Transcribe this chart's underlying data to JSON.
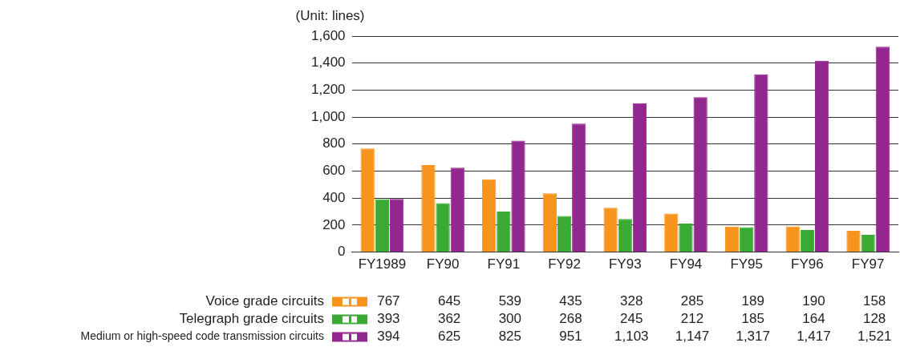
{
  "chart_data": {
    "type": "bar",
    "ylabel": "(Unit: lines)",
    "categories": [
      "FY1989",
      "FY90",
      "FY91",
      "FY92",
      "FY93",
      "FY94",
      "FY95",
      "FY96",
      "FY97"
    ],
    "series": [
      {
        "name": "Voice grade circuits",
        "color": "#f7941d",
        "values": [
          767,
          645,
          539,
          435,
          328,
          285,
          189,
          190,
          158
        ],
        "value_labels": [
          "767",
          "645",
          "539",
          "435",
          "328",
          "285",
          "189",
          "190",
          "158"
        ]
      },
      {
        "name": "Telegraph grade circuits",
        "color": "#3aaa35",
        "values": [
          393,
          362,
          300,
          268,
          245,
          212,
          185,
          164,
          128
        ],
        "value_labels": [
          "393",
          "362",
          "300",
          "268",
          "245",
          "212",
          "185",
          "164",
          "128"
        ]
      },
      {
        "name": "Medium or high-speed code transmission circuits",
        "color": "#92278f",
        "values": [
          394,
          625,
          825,
          951,
          1103,
          1147,
          1317,
          1417,
          1521
        ],
        "value_labels": [
          "394",
          "625",
          "825",
          "951",
          "1,103",
          "1,147",
          "1,317",
          "1,417",
          "1,521"
        ]
      }
    ],
    "ylim": [
      0,
      1600
    ],
    "yticks": [
      0,
      {
        "value": 200,
        "label": "200"
      },
      {
        "value": 400,
        "label": "400"
      },
      {
        "value": 600,
        "label": "600"
      },
      {
        "value": 800,
        "label": "800"
      },
      {
        "value": 1000,
        "label": "1,000"
      },
      {
        "value": 1200,
        "label": "1,200"
      },
      {
        "value": 1400,
        "label": "1,400"
      },
      {
        "value": 1600,
        "label": "1,600"
      }
    ],
    "grid": "y",
    "legend": "bottom"
  }
}
